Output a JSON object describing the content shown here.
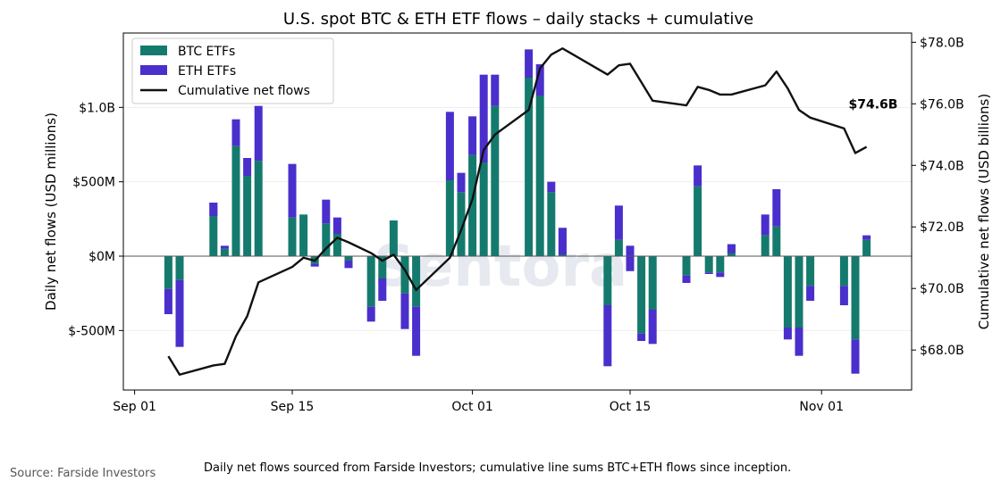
{
  "chart_data": {
    "type": "bar",
    "title": "U.S. spot BTC & ETH ETF flows – daily stacks + cumulative",
    "xlabel": "",
    "ylabel": "Daily net flows (USD millions)",
    "ylabel_right": "Cumulative net flows (USD billions)",
    "x_tick_labels": [
      {
        "day": 0,
        "label": "Sep 01"
      },
      {
        "day": 14,
        "label": "Sep 15"
      },
      {
        "day": 30,
        "label": "Oct 01"
      },
      {
        "day": 44,
        "label": "Oct 15"
      },
      {
        "day": 61,
        "label": "Nov 01"
      }
    ],
    "y_ticks": [
      {
        "value": 1000,
        "label": "$1.0B"
      },
      {
        "value": 500,
        "label": "$500M"
      },
      {
        "value": 0,
        "label": "$0M"
      },
      {
        "value": -500,
        "label": "$-500M"
      }
    ],
    "y2_ticks": [
      {
        "value": 68,
        "label": "$68.0B"
      },
      {
        "value": 70,
        "label": "$70.0B"
      },
      {
        "value": 72,
        "label": "$72.0B"
      },
      {
        "value": 74,
        "label": "$74.0B"
      },
      {
        "value": 76,
        "label": "$76.0B"
      },
      {
        "value": 78,
        "label": "$78.0B"
      }
    ],
    "xlim": [
      -1,
      69
    ],
    "ylim": [
      -900,
      1500
    ],
    "y2lim": [
      66.7,
      78.3
    ],
    "legend_position": "top-left",
    "colors": {
      "btc": "#157a6e",
      "eth": "#4a2fcc",
      "cumulative": "#111111",
      "zero_line": "#555555",
      "grid": "#eeeeee"
    },
    "watermark": "Sentora",
    "series": [
      {
        "name": "BTC ETFs",
        "days": [
          3,
          4,
          7,
          8,
          9,
          10,
          11,
          14,
          15,
          16,
          17,
          18,
          19,
          21,
          22,
          23,
          24,
          25,
          28,
          29,
          30,
          31,
          32,
          35,
          36,
          37,
          38,
          42,
          43,
          44,
          45,
          46,
          49,
          50,
          51,
          52,
          53,
          56,
          57,
          58,
          59,
          60,
          63,
          64,
          65
        ],
        "values": [
          -220,
          -160,
          360,
          50,
          740,
          540,
          640,
          260,
          280,
          -50,
          220,
          150,
          -30,
          -340,
          -150,
          240,
          -250,
          -340,
          510,
          430,
          680,
          630,
          1010,
          1200,
          1080,
          430,
          190,
          -330,
          110,
          -100,
          -520,
          -360,
          -130,
          470,
          -110,
          -110,
          80,
          140,
          200,
          -480,
          -480,
          -200,
          -200,
          -560,
          110
        ]
      },
      {
        "name": "ETH ETFs",
        "days": [
          3,
          4,
          7,
          8,
          9,
          10,
          11,
          14,
          15,
          16,
          17,
          18,
          19,
          21,
          22,
          23,
          24,
          25,
          28,
          29,
          30,
          31,
          32,
          35,
          36,
          37,
          38,
          42,
          43,
          44,
          45,
          46,
          49,
          50,
          51,
          52,
          53,
          56,
          57,
          58,
          59,
          60,
          63,
          64,
          65
        ],
        "values": [
          -170,
          -450,
          -90,
          20,
          180,
          120,
          370,
          360,
          0,
          -20,
          160,
          110,
          -50,
          -100,
          -150,
          0,
          -240,
          -330,
          460,
          130,
          260,
          590,
          210,
          190,
          210,
          70,
          -180,
          -410,
          230,
          170,
          -50,
          -230,
          -50,
          140,
          -10,
          -30,
          -60,
          140,
          250,
          -80,
          -190,
          -100,
          -130,
          -230,
          30
        ]
      },
      {
        "name": "Cumulative net flows",
        "days": [
          3,
          4,
          7,
          8,
          9,
          10,
          11,
          14,
          15,
          16,
          17,
          18,
          19,
          21,
          22,
          23,
          24,
          25,
          28,
          29,
          30,
          31,
          32,
          35,
          36,
          37,
          38,
          42,
          43,
          44,
          45,
          46,
          49,
          50,
          51,
          52,
          53,
          56,
          57,
          58,
          59,
          60,
          63,
          64,
          65
        ],
        "values": [
          67.8,
          67.2,
          67.5,
          67.55,
          68.45,
          69.1,
          70.2,
          70.7,
          71.0,
          70.9,
          71.3,
          71.65,
          71.5,
          71.15,
          70.9,
          71.1,
          70.6,
          69.95,
          71.0,
          71.9,
          72.9,
          74.5,
          75.0,
          75.8,
          77.15,
          77.6,
          77.8,
          76.95,
          77.25,
          77.3,
          76.7,
          76.1,
          75.95,
          76.55,
          76.45,
          76.3,
          76.3,
          76.6,
          77.05,
          76.5,
          75.8,
          75.55,
          75.2,
          74.4,
          74.6
        ]
      }
    ],
    "annotation": "$74.6B"
  },
  "footnote": "Daily net flows sourced from Farside Investors; cumulative line sums BTC+ETH flows since inception.",
  "source": "Source: Farside Investors"
}
